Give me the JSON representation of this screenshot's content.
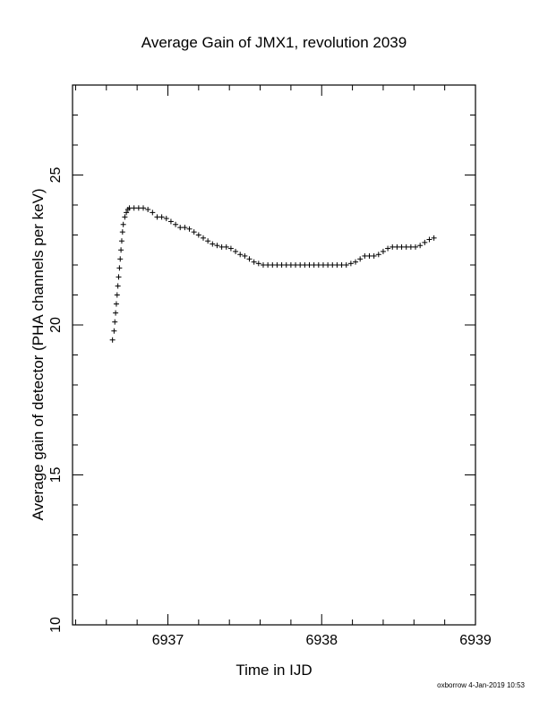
{
  "chart_data": {
    "type": "scatter",
    "title": "Average Gain of JMX1, revolution 2039",
    "xlabel": "Time in IJD",
    "ylabel": "Average gain of detector (PHA channels per keV)",
    "xlim": [
      6936.38,
      6939.0
    ],
    "ylim": [
      10,
      28
    ],
    "x_ticks": [
      {
        "value": 6937,
        "label": "6937"
      },
      {
        "value": 6938,
        "label": "6938"
      },
      {
        "value": 6939,
        "label": "6939"
      }
    ],
    "y_ticks": [
      {
        "value": 10,
        "label": "10"
      },
      {
        "value": 15,
        "label": "15"
      },
      {
        "value": 20,
        "label": "20"
      },
      {
        "value": 25,
        "label": "25"
      }
    ],
    "marker": "+",
    "grid": false,
    "legend": "none",
    "series": [
      {
        "points": [
          [
            6936.64,
            19.5
          ],
          [
            6936.65,
            19.8
          ],
          [
            6936.655,
            20.1
          ],
          [
            6936.66,
            20.4
          ],
          [
            6936.665,
            20.7
          ],
          [
            6936.67,
            21.0
          ],
          [
            6936.675,
            21.3
          ],
          [
            6936.68,
            21.6
          ],
          [
            6936.685,
            21.9
          ],
          [
            6936.69,
            22.2
          ],
          [
            6936.695,
            22.5
          ],
          [
            6936.7,
            22.8
          ],
          [
            6936.705,
            23.1
          ],
          [
            6936.71,
            23.35
          ],
          [
            6936.72,
            23.6
          ],
          [
            6936.73,
            23.75
          ],
          [
            6936.74,
            23.85
          ],
          [
            6936.75,
            23.9
          ],
          [
            6936.78,
            23.9
          ],
          [
            6936.81,
            23.9
          ],
          [
            6936.84,
            23.9
          ],
          [
            6936.87,
            23.85
          ],
          [
            6936.9,
            23.75
          ],
          [
            6936.93,
            23.6
          ],
          [
            6936.96,
            23.6
          ],
          [
            6936.99,
            23.55
          ],
          [
            6937.02,
            23.45
          ],
          [
            6937.05,
            23.35
          ],
          [
            6937.08,
            23.25
          ],
          [
            6937.11,
            23.25
          ],
          [
            6937.14,
            23.2
          ],
          [
            6937.17,
            23.1
          ],
          [
            6937.2,
            23.0
          ],
          [
            6937.23,
            22.9
          ],
          [
            6937.26,
            22.8
          ],
          [
            6937.29,
            22.7
          ],
          [
            6937.32,
            22.65
          ],
          [
            6937.35,
            22.6
          ],
          [
            6937.38,
            22.6
          ],
          [
            6937.41,
            22.55
          ],
          [
            6937.44,
            22.45
          ],
          [
            6937.47,
            22.35
          ],
          [
            6937.5,
            22.3
          ],
          [
            6937.53,
            22.2
          ],
          [
            6937.56,
            22.1
          ],
          [
            6937.59,
            22.05
          ],
          [
            6937.62,
            22.0
          ],
          [
            6937.65,
            22.0
          ],
          [
            6937.68,
            22.0
          ],
          [
            6937.71,
            22.0
          ],
          [
            6937.74,
            22.0
          ],
          [
            6937.77,
            22.0
          ],
          [
            6937.8,
            22.0
          ],
          [
            6937.83,
            22.0
          ],
          [
            6937.86,
            22.0
          ],
          [
            6937.89,
            22.0
          ],
          [
            6937.92,
            22.0
          ],
          [
            6937.95,
            22.0
          ],
          [
            6937.98,
            22.0
          ],
          [
            6938.01,
            22.0
          ],
          [
            6938.04,
            22.0
          ],
          [
            6938.07,
            22.0
          ],
          [
            6938.1,
            22.0
          ],
          [
            6938.13,
            22.0
          ],
          [
            6938.16,
            22.0
          ],
          [
            6938.19,
            22.05
          ],
          [
            6938.22,
            22.1
          ],
          [
            6938.25,
            22.2
          ],
          [
            6938.28,
            22.3
          ],
          [
            6938.31,
            22.3
          ],
          [
            6938.34,
            22.3
          ],
          [
            6938.37,
            22.35
          ],
          [
            6938.4,
            22.45
          ],
          [
            6938.43,
            22.55
          ],
          [
            6938.46,
            22.6
          ],
          [
            6938.49,
            22.6
          ],
          [
            6938.52,
            22.6
          ],
          [
            6938.55,
            22.6
          ],
          [
            6938.58,
            22.6
          ],
          [
            6938.61,
            22.6
          ],
          [
            6938.64,
            22.65
          ],
          [
            6938.67,
            22.75
          ],
          [
            6938.7,
            22.85
          ],
          [
            6938.73,
            22.9
          ]
        ]
      }
    ]
  },
  "footer": {
    "credit": "oxborrow  4-Jan-2019 10:53"
  },
  "colors": {
    "axis": "#000000",
    "marker": "#000000",
    "background": "#ffffff"
  }
}
